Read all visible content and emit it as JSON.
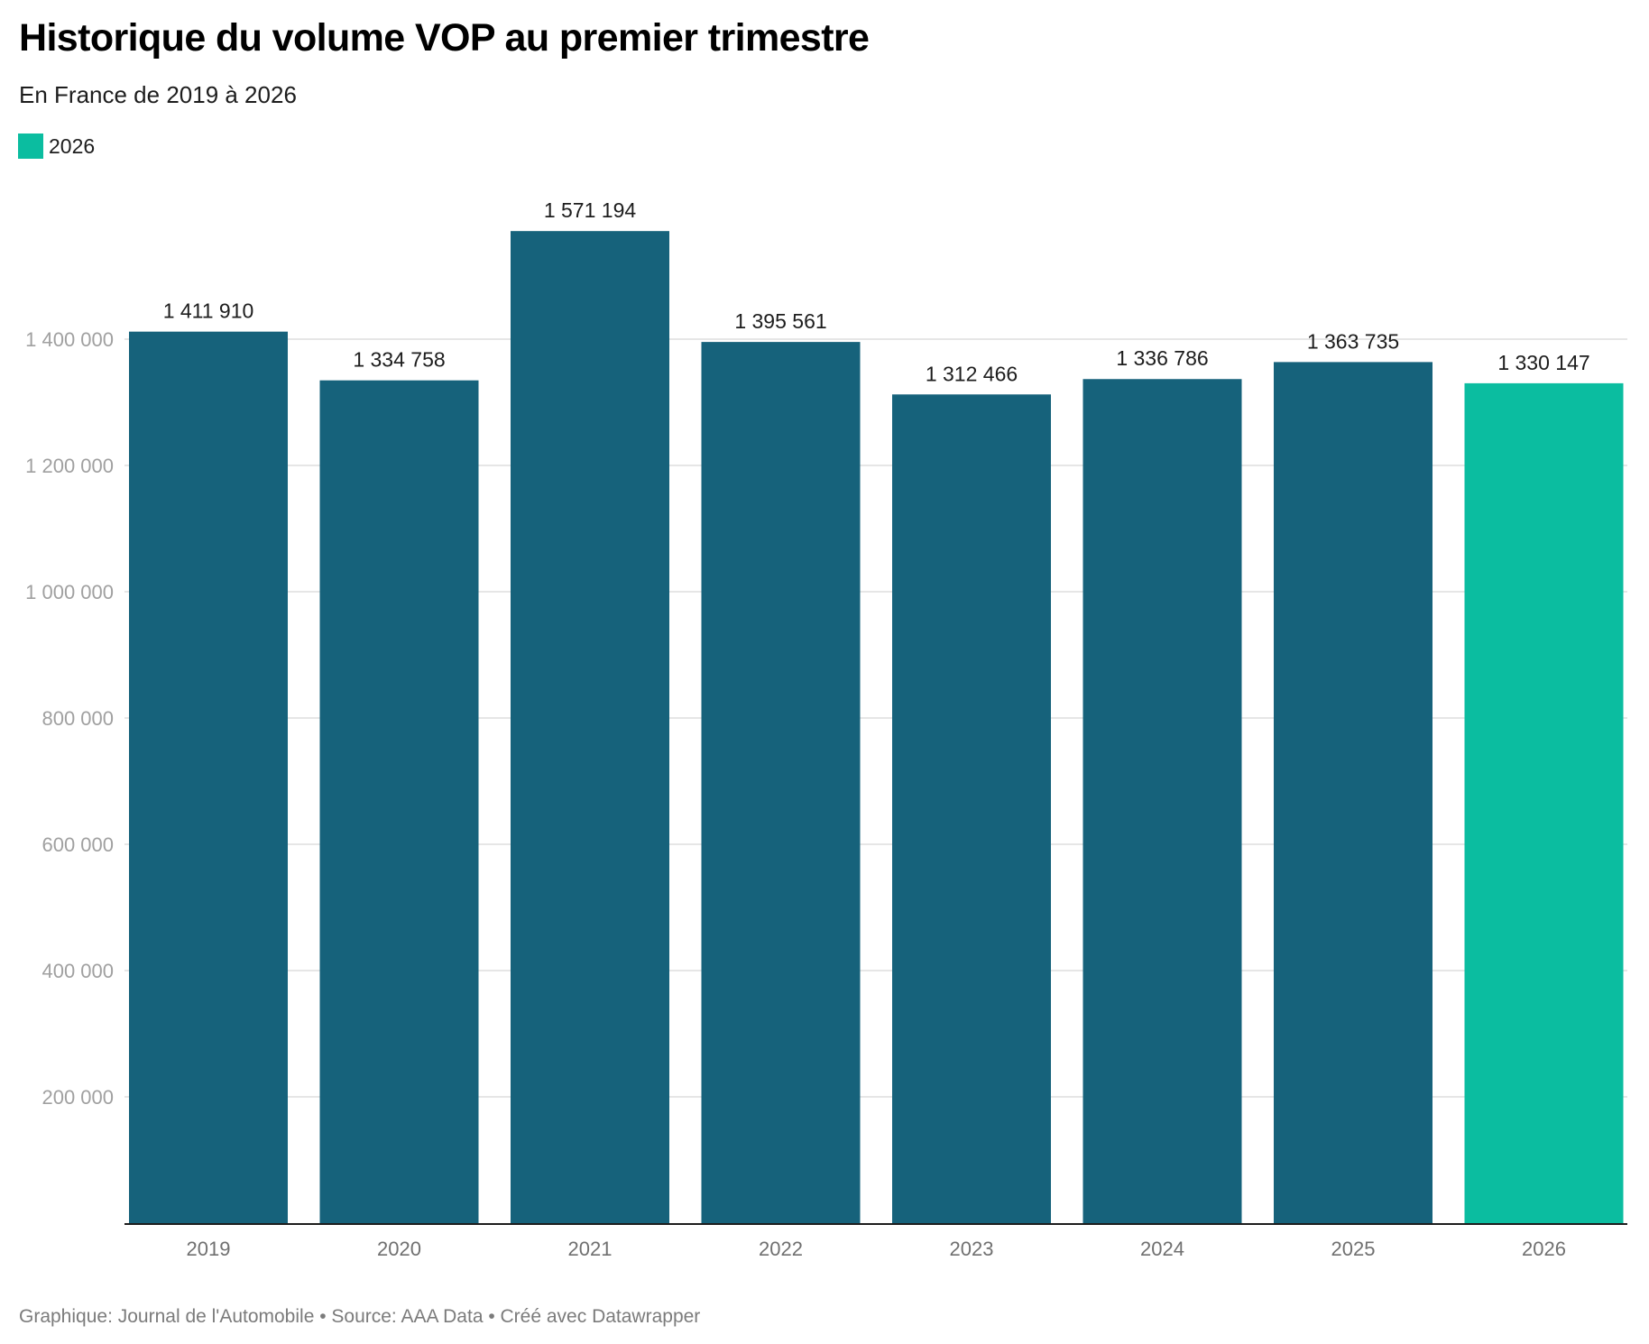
{
  "title": "Historique du volume VOP au premier trimestre",
  "subtitle": "En France de 2019 à 2026",
  "legend": [
    {
      "label": "2026",
      "color": "#0bbda0"
    }
  ],
  "footer": "Graphique: Journal de l'Automobile • Source: AAA Data • Créé avec Datawrapper",
  "colors": {
    "default_bar": "#16627b",
    "highlight_bar": "#0bbda0",
    "grid": "#e6e6e6",
    "axis": "#1d1d1d"
  },
  "chart_data": {
    "type": "bar",
    "title": "Historique du volume VOP au premier trimestre",
    "subtitle": "En France de 2019 à 2026",
    "xlabel": "",
    "ylabel": "",
    "categories": [
      "2019",
      "2020",
      "2021",
      "2022",
      "2023",
      "2024",
      "2025",
      "2026"
    ],
    "values": [
      1411910,
      1334758,
      1571194,
      1395561,
      1312466,
      1336786,
      1363735,
      1330147
    ],
    "value_labels": [
      "1 411 910",
      "1 334 758",
      "1 571 194",
      "1 395 561",
      "1 312 466",
      "1 336 786",
      "1 363 735",
      "1 330 147"
    ],
    "highlight": [
      "2026"
    ],
    "ylim": [
      0,
      1571194
    ],
    "yticks": [
      200000,
      400000,
      600000,
      800000,
      1000000,
      1200000,
      1400000
    ],
    "ytick_labels": [
      "200 000",
      "400 000",
      "600 000",
      "800 000",
      "1 000 000",
      "1 200 000",
      "1 400 000"
    ],
    "grid": true,
    "legend_position": "top-left"
  }
}
